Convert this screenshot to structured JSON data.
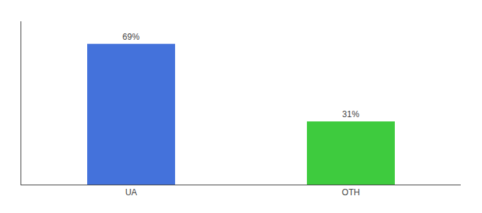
{
  "chart_data": {
    "type": "bar",
    "categories": [
      "UA",
      "OTH"
    ],
    "values": [
      69,
      31
    ],
    "value_labels": [
      "69%",
      "31%"
    ],
    "colors": [
      "#4472db",
      "#3ecb3e"
    ],
    "ylim": [
      0,
      80
    ],
    "data_labels": true,
    "tick_labels": "x",
    "grid": false
  }
}
